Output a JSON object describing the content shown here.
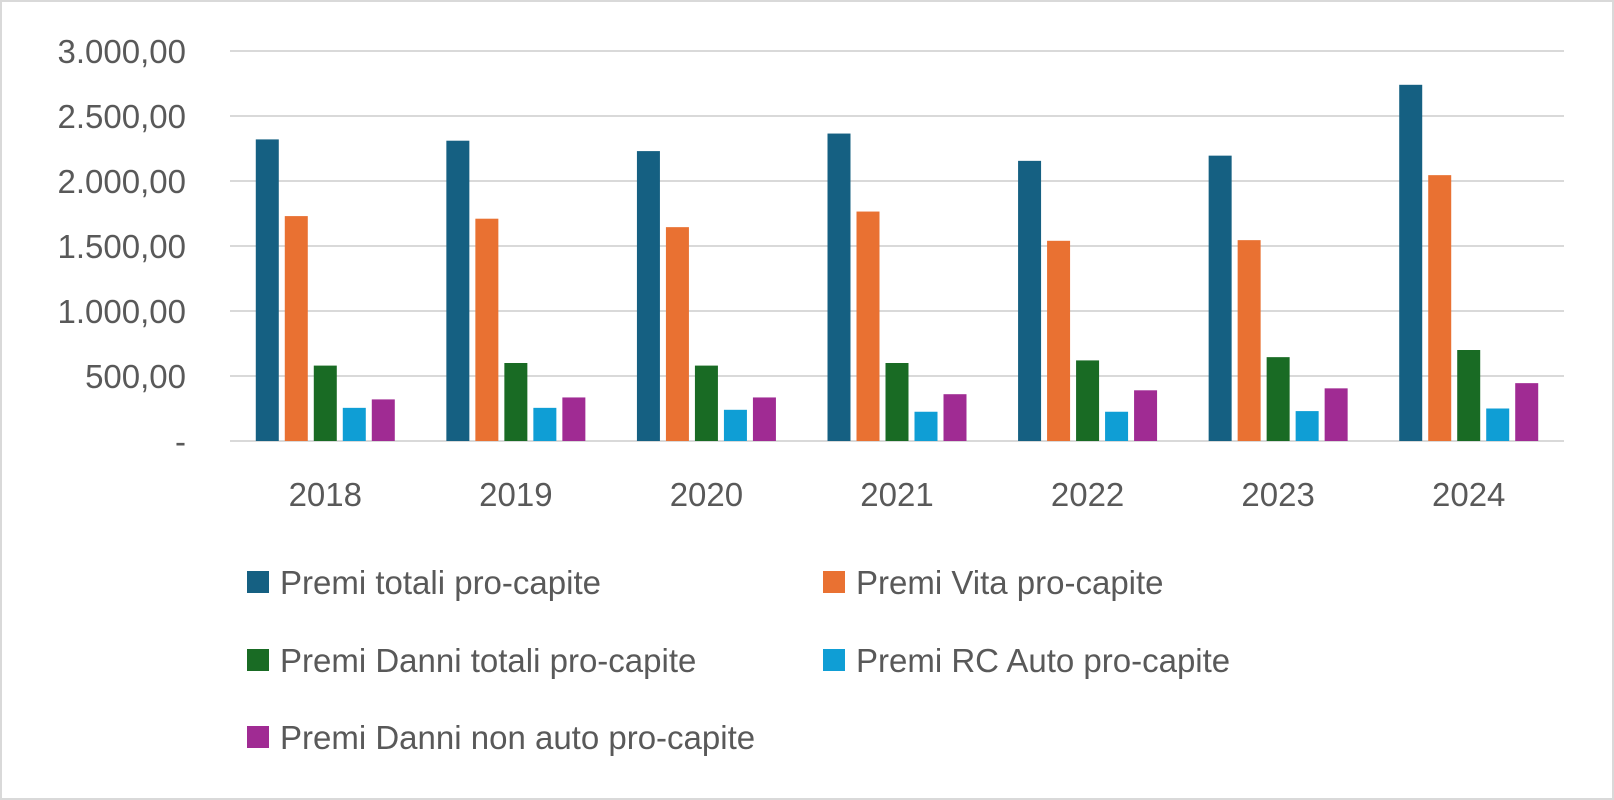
{
  "chart_data": {
    "type": "bar",
    "categories": [
      "2018",
      "2019",
      "2020",
      "2021",
      "2022",
      "2023",
      "2024"
    ],
    "series": [
      {
        "name": "Premi totali pro-capite",
        "color": "#156082",
        "values": [
          2320,
          2310,
          2230,
          2365,
          2155,
          2195,
          2740
        ]
      },
      {
        "name": "Premi Vita pro-capite",
        "color": "#E97132",
        "values": [
          1730,
          1710,
          1645,
          1765,
          1540,
          1545,
          2045
        ]
      },
      {
        "name": "Premi Danni totali pro-capite",
        "color": "#196B24",
        "values": [
          580,
          600,
          580,
          600,
          620,
          645,
          700
        ]
      },
      {
        "name": "Premi RC Auto pro-capite",
        "color": "#0F9ED5",
        "values": [
          255,
          255,
          240,
          225,
          225,
          230,
          250
        ]
      },
      {
        "name": "Premi Danni non auto pro-capite",
        "color": "#A02B93",
        "values": [
          320,
          335,
          335,
          360,
          390,
          405,
          445
        ]
      }
    ],
    "yticks": [
      {
        "value": 0,
        "label": "-"
      },
      {
        "value": 500,
        "label": "500,00"
      },
      {
        "value": 1000,
        "label": "1.000,00"
      },
      {
        "value": 1500,
        "label": "1.500,00"
      },
      {
        "value": 2000,
        "label": "2.000,00"
      },
      {
        "value": 2500,
        "label": "2.500,00"
      },
      {
        "value": 3000,
        "label": "3.000,00"
      }
    ],
    "ylim": [
      0,
      3000
    ],
    "grid": true,
    "legend_position": "bottom",
    "title": "",
    "xlabel": "",
    "ylabel": ""
  }
}
